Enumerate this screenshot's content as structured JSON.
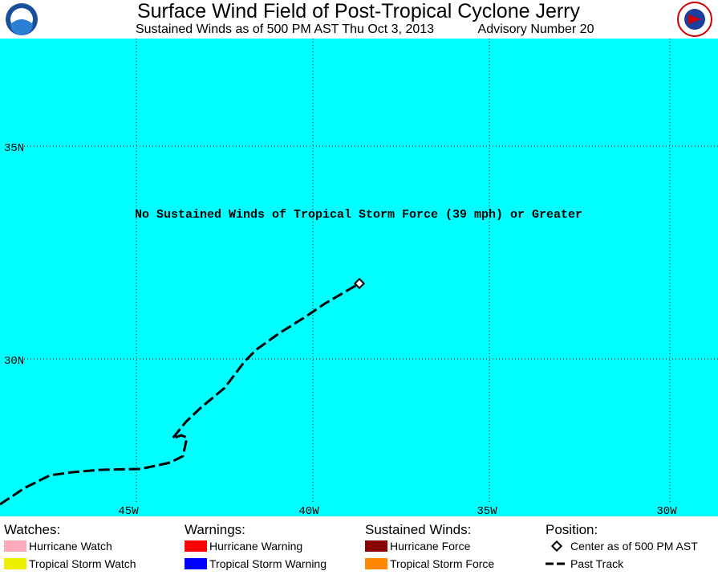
{
  "header": {
    "title": "Surface Wind Field of Post-Tropical Cyclone Jerry",
    "subtitle": "Sustained Winds as of 500 PM AST Thu Oct 3, 2013",
    "advisory": "Advisory Number 20"
  },
  "map": {
    "message": "No Sustained Winds of Tropical Storm Force (39 mph) or Greater",
    "lat_labels": [
      "35N",
      "30N"
    ],
    "lon_labels": [
      "45W",
      "40W",
      "35W",
      "30W"
    ]
  },
  "legend": [
    {
      "heading": "Watches:",
      "items": [
        {
          "label": "Hurricane Watch",
          "color": "#ffaabb"
        },
        {
          "label": "Tropical Storm Watch",
          "color": "#eeee00"
        }
      ]
    },
    {
      "heading": "Warnings:",
      "items": [
        {
          "label": "Hurricane Warning",
          "color": "#ff0000"
        },
        {
          "label": "Tropical Storm Warning",
          "color": "#0000ff"
        }
      ]
    },
    {
      "heading": "Sustained Winds:",
      "items": [
        {
          "label": "Hurricane Force",
          "color": "#880000"
        },
        {
          "label": "Tropical Storm Force",
          "color": "#ff8800"
        }
      ]
    },
    {
      "heading": "Position:",
      "items": [
        {
          "label": "Center as of 500 PM AST",
          "symbol": "diamond"
        },
        {
          "label": "Past Track",
          "symbol": "dash"
        }
      ]
    }
  ]
}
